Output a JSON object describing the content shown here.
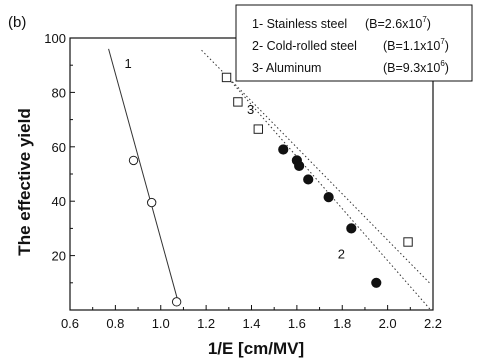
{
  "panel_label": "(b)",
  "legend": {
    "entries": [
      {
        "label": "1- Stainless steel",
        "b_base": "(B=2.6x10",
        "b_exp": "7",
        "b_close": ")"
      },
      {
        "label": "2- Cold-rolled steel",
        "b_base": "(B=1.1x10",
        "b_exp": "7",
        "b_close": ")"
      },
      {
        "label": "3- Aluminum",
        "b_base": "(B=9.3x10",
        "b_exp": "6",
        "b_close": ")"
      }
    ]
  },
  "chart_data": {
    "type": "scatter",
    "title": "",
    "xlabel": "1/E [cm/MV]",
    "ylabel": "The effective  yield",
    "xlim": [
      0.6,
      2.2
    ],
    "ylim": [
      0,
      100
    ],
    "xticks": [
      0.6,
      0.8,
      1.0,
      1.2,
      1.4,
      1.6,
      1.8,
      2.0,
      2.2
    ],
    "xtick_labels": [
      "0.6",
      "0.8",
      "1.0",
      "1.2",
      "1.4",
      "1.6",
      "1.8",
      "2.0",
      "2.2"
    ],
    "yticks": [
      20,
      40,
      60,
      80,
      100
    ],
    "ytick_labels": [
      "20",
      "40",
      "60",
      "80",
      "100"
    ],
    "grid": false,
    "legend_position": "top-right",
    "series": [
      {
        "name": "1",
        "marker": "open-circle",
        "points": [
          [
            0.88,
            55
          ],
          [
            0.96,
            39.5
          ],
          [
            1.07,
            3
          ]
        ],
        "fit_line": [
          [
            0.77,
            96
          ],
          [
            1.08,
            2
          ]
        ],
        "fit_style": "solid"
      },
      {
        "name": "2",
        "marker": "filled-circle",
        "points": [
          [
            1.54,
            59
          ],
          [
            1.6,
            55
          ],
          [
            1.61,
            53
          ],
          [
            1.65,
            48
          ],
          [
            1.74,
            41.5
          ],
          [
            1.84,
            30
          ],
          [
            1.95,
            10
          ]
        ],
        "fit_line": [
          [
            1.3,
            85
          ],
          [
            2.19,
            0
          ]
        ],
        "fit_style": "dotted"
      },
      {
        "name": "3",
        "marker": "open-square",
        "points": [
          [
            1.29,
            85.5
          ],
          [
            1.34,
            76.5
          ],
          [
            1.43,
            66.5
          ],
          [
            2.09,
            25
          ]
        ],
        "fit_line": [
          [
            1.18,
            95.5
          ],
          [
            2.19,
            9.5
          ]
        ],
        "fit_style": "dotted"
      }
    ],
    "series_label_positions": [
      {
        "name": "1",
        "x": 0.84,
        "y": 89
      },
      {
        "name": "2",
        "x": 1.78,
        "y": 19
      },
      {
        "name": "3",
        "x": 1.38,
        "y": 72
      }
    ]
  }
}
